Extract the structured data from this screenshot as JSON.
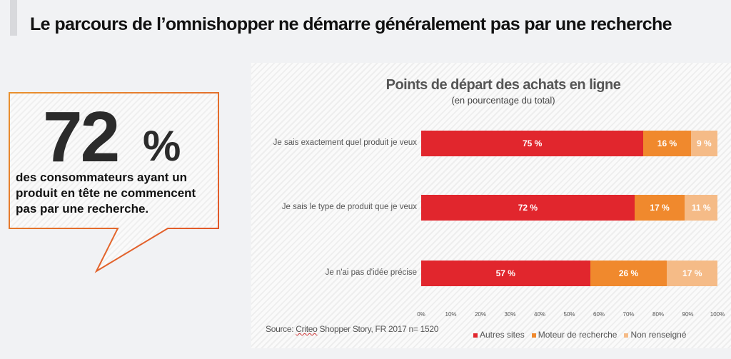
{
  "header": {
    "title": "Le parcours de l’omnishopper ne démarre généralement pas par une recherche"
  },
  "callout": {
    "number": "72",
    "percent_sign": "%",
    "text": "des consommateurs ayant un produit en tête ne commencent pas par une recherche."
  },
  "source": {
    "prefix": "Source: ",
    "link": "Criteo",
    "rest": " Shopper Story, FR 2017 n= 1520"
  },
  "chart_data": {
    "type": "bar",
    "orientation": "horizontal",
    "stacked": true,
    "title": "Points de départ des achats en ligne",
    "subtitle": "(en pourcentage du total)",
    "categories": [
      "Je sais exactement quel produit je veux",
      "Je sais le type de produit que je veux",
      "Je n'ai pas d'idée précise"
    ],
    "series": [
      {
        "name": "Autres sites",
        "color": "#e1262d",
        "values": [
          75,
          72,
          57
        ],
        "labels": [
          "75 %",
          "72 %",
          "57 %"
        ]
      },
      {
        "name": "Moteur de recherche",
        "color": "#f0892d",
        "values": [
          16,
          17,
          26
        ],
        "labels": [
          "16 %",
          "17 %",
          "26 %"
        ]
      },
      {
        "name": "Non renseigné",
        "color": "#f5bb87",
        "values": [
          9,
          11,
          17
        ],
        "labels": [
          "9 %",
          "11 %",
          "17 %"
        ]
      }
    ],
    "xlim": [
      0,
      100
    ],
    "xticks": [
      "0%",
      "10%",
      "20%",
      "30%",
      "40%",
      "50%",
      "60%",
      "70%",
      "80%",
      "90%",
      "100%"
    ],
    "legend_position": "bottom-right",
    "grid": false
  }
}
